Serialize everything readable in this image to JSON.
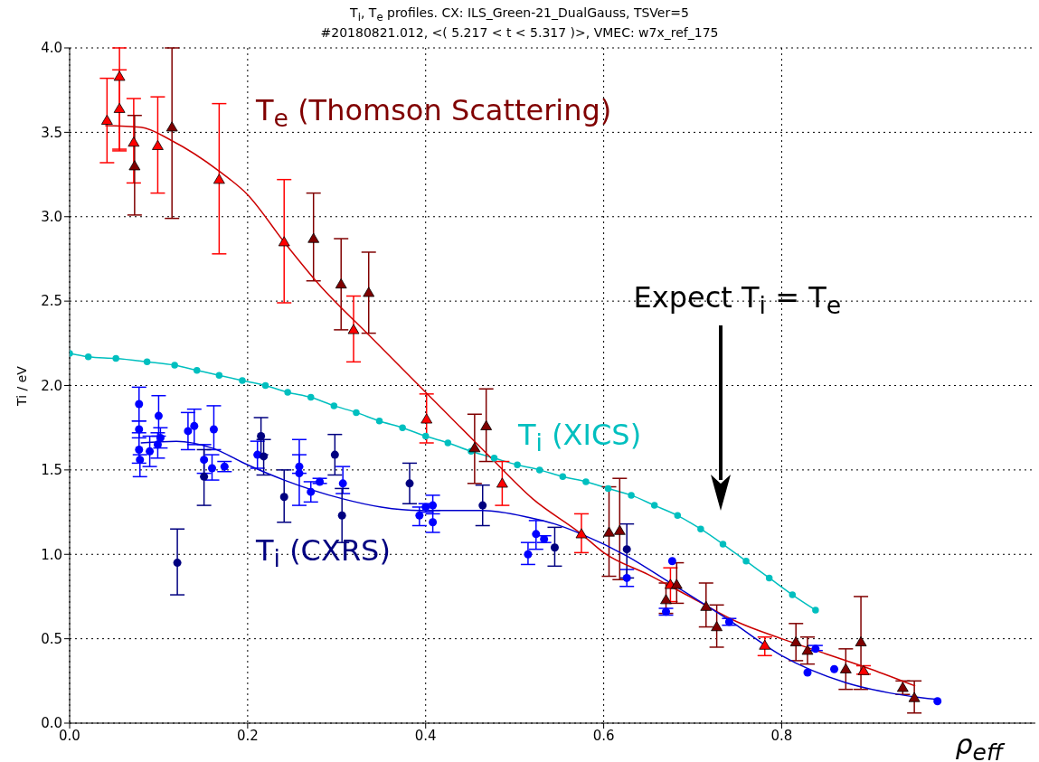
{
  "chart_data": {
    "type": "scatter",
    "title": "T$_{i}$, T$_{e}$ profiles. CX: ILS_Green-21_DualGauss, TSVer=5",
    "subtitle": "#20180821.012, <( 5.217 < t < 5.317 )>, VMEC: w7x_ref_175",
    "xlabel": "ρ$_{eff}$",
    "ylabel": "Ti / eV",
    "xlim": [
      0,
      1.085
    ],
    "ylim": [
      0,
      4
    ],
    "xticks": [
      {
        "value": 0,
        "label": "0.0"
      },
      {
        "value": 0.2,
        "label": "0.2"
      },
      {
        "value": 0.4,
        "label": "0.4"
      },
      {
        "value": 0.6,
        "label": "0.6"
      },
      {
        "value": 0.8,
        "label": "0.8"
      }
    ],
    "yticks": [
      {
        "value": 0,
        "label": "0.0"
      },
      {
        "value": 0.5,
        "label": "0.5"
      },
      {
        "value": 1,
        "label": "1.0"
      },
      {
        "value": 1.5,
        "label": "1.5"
      },
      {
        "value": 2,
        "label": "2.0"
      },
      {
        "value": 2.5,
        "label": "2.5"
      },
      {
        "value": 3,
        "label": "3.0"
      },
      {
        "value": 3.5,
        "label": "3.5"
      },
      {
        "value": 4,
        "label": "4.0"
      }
    ],
    "grid": true,
    "annotations": [
      "Expect T$_{i}$ = T$_{e}$"
    ],
    "series": [
      {
        "name": "T$_{i}$ (XICS)",
        "type": "line",
        "marker": "circle",
        "color": "#00bfbf",
        "x": [
          0,
          0.021,
          0.052,
          0.087,
          0.118,
          0.143,
          0.168,
          0.194,
          0.22,
          0.245,
          0.271,
          0.297,
          0.322,
          0.348,
          0.374,
          0.4,
          0.425,
          0.451,
          0.477,
          0.503,
          0.528,
          0.554,
          0.58,
          0.605,
          0.631,
          0.657,
          0.683,
          0.709,
          0.734,
          0.76,
          0.786,
          0.812,
          0.838
        ],
        "values": [
          2.19,
          2.17,
          2.16,
          2.14,
          2.12,
          2.09,
          2.06,
          2.03,
          2,
          1.96,
          1.93,
          1.88,
          1.84,
          1.79,
          1.75,
          1.7,
          1.66,
          1.61,
          1.57,
          1.53,
          1.5,
          1.46,
          1.43,
          1.39,
          1.35,
          1.29,
          1.23,
          1.15,
          1.06,
          0.96,
          0.86,
          0.76,
          0.67
        ]
      },
      {
        "marker": "circle",
        "color": "#0000ff",
        "x": [
          0.078,
          0.078,
          0.078,
          0.079,
          0.09,
          0.099,
          0.1,
          0.102,
          0.133,
          0.14,
          0.151,
          0.162,
          0.16,
          0.174,
          0.211,
          0.258,
          0.258,
          0.271,
          0.281,
          0.307,
          0.393,
          0.4,
          0.408,
          0.408,
          0.515,
          0.524,
          0.533,
          0.626,
          0.677,
          0.67,
          0.741,
          0.838,
          0.829,
          0.859,
          0.975
        ],
        "values": [
          1.89,
          1.74,
          1.62,
          1.56,
          1.61,
          1.65,
          1.82,
          1.69,
          1.73,
          1.76,
          1.56,
          1.74,
          1.51,
          1.52,
          1.59,
          1.52,
          1.48,
          1.37,
          1.43,
          1.42,
          1.23,
          1.28,
          1.29,
          1.19,
          1,
          1.12,
          1.09,
          0.86,
          0.96,
          0.66,
          0.6,
          0.44,
          0.3,
          0.32,
          0.13
        ],
        "errors": [
          [
            1.79,
            1.99
          ],
          [
            1.69,
            1.79
          ],
          [
            1.54,
            1.72
          ],
          [
            1.46,
            1.59
          ],
          [
            1.52,
            1.7
          ],
          [
            1.57,
            1.72
          ],
          [
            1.7,
            1.94
          ],
          [
            1.63,
            1.75
          ],
          [
            1.62,
            1.84
          ],
          [
            1.65,
            1.86
          ],
          [
            1.48,
            1.65
          ],
          [
            1.62,
            1.88
          ],
          [
            1.44,
            1.59
          ],
          [
            1.49,
            1.55
          ],
          [
            1.51,
            1.67
          ],
          [
            1.48,
            1.68
          ],
          [
            1.29,
            1.59
          ],
          [
            1.31,
            1.43
          ],
          [
            1.42,
            1.45
          ],
          [
            1.36,
            1.52
          ],
          [
            1.17,
            1.28
          ],
          [
            1.25,
            1.3
          ],
          [
            1.24,
            1.35
          ],
          [
            1.13,
            1.26
          ],
          [
            0.94,
            1.07
          ],
          [
            1.03,
            1.2
          ],
          [
            1.07,
            1.11
          ],
          [
            0.81,
            0.91
          ],
          null,
          [
            0.64,
            0.68
          ],
          [
            0.58,
            0.62
          ],
          [
            0.43,
            0.46
          ],
          null,
          null,
          null
        ]
      },
      {
        "name": "T$_{i}$ (CXRS)",
        "marker": "circle",
        "color": "#000080",
        "x": [
          0.121,
          0.151,
          0.215,
          0.218,
          0.241,
          0.298,
          0.306,
          0.382,
          0.464,
          0.545,
          0.626
        ],
        "values": [
          0.95,
          1.46,
          1.7,
          1.58,
          1.34,
          1.59,
          1.23,
          1.42,
          1.29,
          1.04,
          1.03
        ],
        "errors": [
          [
            0.76,
            1.15
          ],
          [
            1.29,
            1.62
          ],
          [
            1.59,
            1.81
          ],
          [
            1.47,
            1.68
          ],
          [
            1.19,
            1.5
          ],
          [
            1.47,
            1.71
          ],
          [
            1.07,
            1.39
          ],
          [
            1.3,
            1.54
          ],
          [
            1.17,
            1.41
          ],
          [
            0.93,
            1.16
          ],
          [
            0.86,
            1.18
          ]
        ]
      },
      {
        "marker": "triangle",
        "color": "#ff0000",
        "x": [
          0.042,
          0.056,
          0.056,
          0.072,
          0.099,
          0.168,
          0.241,
          0.319,
          0.401,
          0.486,
          0.575,
          0.675,
          0.781,
          0.892
        ],
        "values": [
          3.57,
          3.83,
          3.64,
          3.44,
          3.42,
          3.22,
          2.85,
          2.33,
          1.8,
          1.42,
          1.12,
          0.82,
          0.46,
          0.31
        ],
        "errors": [
          [
            3.32,
            3.82
          ],
          [
            3.4,
            4
          ],
          [
            3.39,
            3.87
          ],
          [
            3.2,
            3.7
          ],
          [
            3.14,
            3.71
          ],
          [
            2.78,
            3.67
          ],
          [
            2.49,
            3.22
          ],
          [
            2.14,
            2.53
          ],
          [
            1.66,
            1.95
          ],
          [
            1.29,
            1.55
          ],
          [
            1.01,
            1.24
          ],
          [
            0.72,
            0.92
          ],
          [
            0.4,
            0.51
          ],
          [
            0.29,
            0.34
          ]
        ]
      },
      {
        "name": "T$_{e}$ (Thomson Scattering)",
        "marker": "triangle",
        "color": "#800000",
        "x": [
          0.073,
          0.115,
          0.274,
          0.305,
          0.336,
          0.455,
          0.468,
          0.606,
          0.618,
          0.67,
          0.682,
          0.715,
          0.727,
          0.816,
          0.829,
          0.872,
          0.889,
          0.936,
          0.949
        ],
        "values": [
          3.3,
          3.53,
          2.87,
          2.6,
          2.55,
          1.63,
          1.76,
          1.13,
          1.14,
          0.73,
          0.82,
          0.69,
          0.57,
          0.48,
          0.43,
          0.32,
          0.48,
          0.21,
          0.15
        ],
        "errors": [
          [
            3.01,
            3.6
          ],
          [
            2.99,
            4
          ],
          [
            2.62,
            3.14
          ],
          [
            2.33,
            2.87
          ],
          [
            2.31,
            2.79
          ],
          [
            1.42,
            1.83
          ],
          [
            1.55,
            1.98
          ],
          [
            0.87,
            1.4
          ],
          [
            0.85,
            1.45
          ],
          [
            0.65,
            0.83
          ],
          [
            0.71,
            0.95
          ],
          [
            0.57,
            0.83
          ],
          [
            0.45,
            0.7
          ],
          [
            0.37,
            0.59
          ],
          [
            0.35,
            0.51
          ],
          [
            0.2,
            0.44
          ],
          [
            0.2,
            0.75
          ],
          [
            0.17,
            0.25
          ],
          [
            0.06,
            0.25
          ]
        ]
      },
      {
        "type": "line",
        "marker": "none",
        "color": "#cc0000",
        "x": [
          0.04,
          0.08,
          0.115,
          0.168,
          0.2,
          0.241,
          0.28,
          0.336,
          0.4,
          0.468,
          0.52,
          0.575,
          0.6,
          0.65,
          0.7,
          0.75,
          0.8,
          0.85,
          0.9,
          0.95
        ],
        "values": [
          3.54,
          3.53,
          3.45,
          3.27,
          3.13,
          2.85,
          2.6,
          2.3,
          1.96,
          1.6,
          1.33,
          1.12,
          1.01,
          0.88,
          0.74,
          0.6,
          0.5,
          0.41,
          0.32,
          0.22
        ]
      },
      {
        "type": "line",
        "marker": "none",
        "color": "#0000cc",
        "x": [
          0.08,
          0.12,
          0.16,
          0.2,
          0.241,
          0.306,
          0.35,
          0.393,
          0.464,
          0.515,
          0.545,
          0.575,
          0.626,
          0.675,
          0.741,
          0.8,
          0.872,
          0.92,
          0.975
        ],
        "values": [
          1.66,
          1.67,
          1.63,
          1.53,
          1.44,
          1.33,
          1.28,
          1.26,
          1.26,
          1.22,
          1.18,
          1.12,
          0.99,
          0.83,
          0.61,
          0.4,
          0.24,
          0.18,
          0.14
        ]
      }
    ]
  }
}
